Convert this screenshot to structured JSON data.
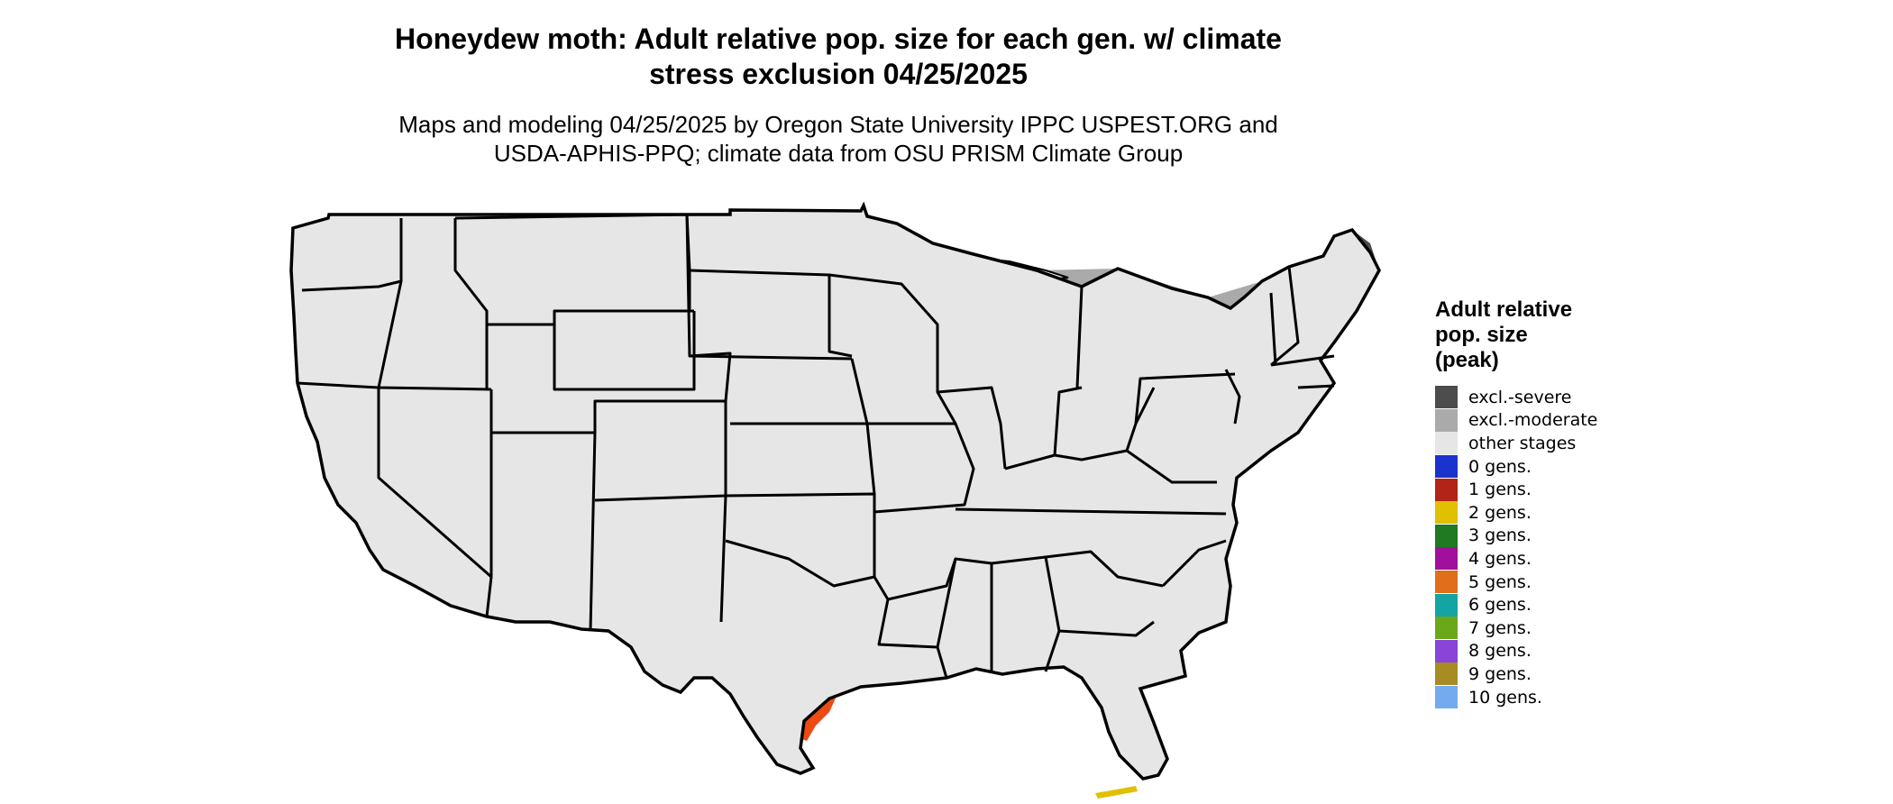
{
  "title": "Honeydew moth: Adult relative pop. size for each gen. w/ climate\nstress exclusion 04/25/2025",
  "subtitle": "Maps and modeling 04/25/2025 by Oregon State University IPPC USPEST.ORG and\nUSDA-APHIS-PPQ; climate data from OSU PRISM Climate Group",
  "legend": {
    "title": "Adult relative\npop. size\n(peak)",
    "items": [
      {
        "label": "excl.-severe",
        "color": "#4d4d4d"
      },
      {
        "label": "excl.-moderate",
        "color": "#aaaaaa"
      },
      {
        "label": "other stages",
        "color": "#e6e6e6"
      },
      {
        "label": "0 gens.",
        "color": "#1a33cc"
      },
      {
        "label": "1 gens.",
        "color": "#b22418"
      },
      {
        "label": "2 gens.",
        "color": "#e0c000"
      },
      {
        "label": "3 gens.",
        "color": "#1f7a22"
      },
      {
        "label": "4 gens.",
        "color": "#a0109c"
      },
      {
        "label": "5 gens.",
        "color": "#e06e1a"
      },
      {
        "label": "6 gens.",
        "color": "#14a4a4"
      },
      {
        "label": "7 gens.",
        "color": "#6aa81a"
      },
      {
        "label": "8 gens.",
        "color": "#8a44d8"
      },
      {
        "label": "9 gens.",
        "color": "#a68c22"
      },
      {
        "label": "10 gens.",
        "color": "#74aaee"
      }
    ]
  },
  "map": {
    "colors": {
      "severe": "#4d4d4d",
      "moderate": "#aaaaaa",
      "other": "#e6e6e6",
      "gen0_dark": "#0a3cd8",
      "gen0_light": "#16aaf0",
      "gen1": "#ee4a14",
      "gen2": "#e0c000",
      "border": "#000000",
      "lakes": "#ffffff"
    }
  }
}
